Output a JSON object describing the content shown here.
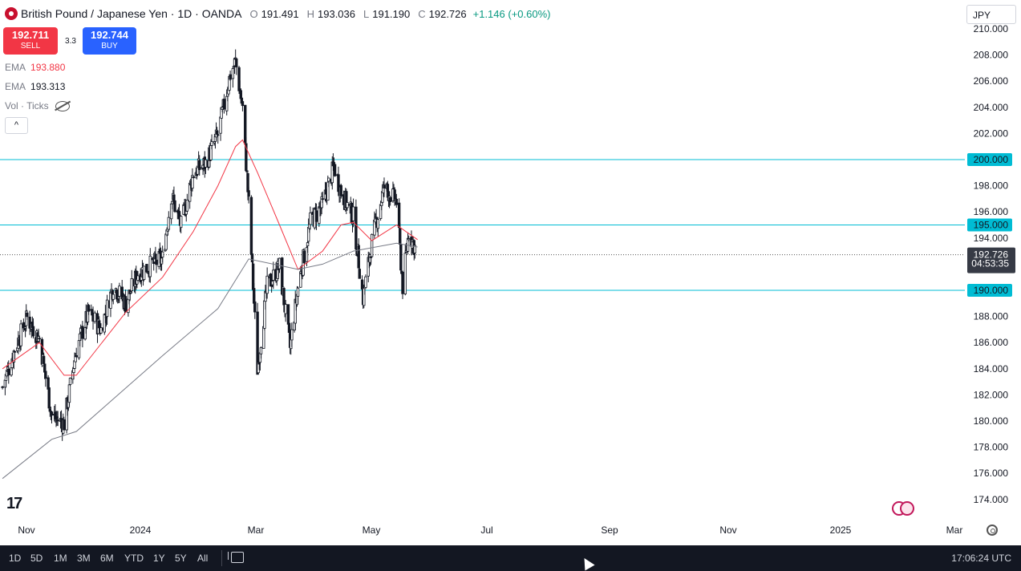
{
  "header": {
    "symbol_title": "British Pound / Japanese Yen · 1D · OANDA",
    "open_label": "O",
    "open_value": "191.491",
    "high_label": "H",
    "high_value": "193.036",
    "low_label": "L",
    "low_value": "191.190",
    "close_label": "C",
    "close_value": "192.726",
    "change": "+1.146 (+0.60%)"
  },
  "trade": {
    "sell_price": "192.711",
    "sell_label": "SELL",
    "spread": "3.3",
    "buy_price": "192.744",
    "buy_label": "BUY"
  },
  "indicators": [
    {
      "name": "EMA",
      "value": "193.880",
      "color": "#f23645"
    },
    {
      "name": "EMA",
      "value": "193.313",
      "color": "#787b86"
    },
    {
      "name": "Vol · Ticks",
      "value": ""
    }
  ],
  "collapse_label": "^",
  "currency": "JPY",
  "axis": {
    "price_labels": [
      "210.000",
      "208.000",
      "206.000",
      "204.000",
      "202.000",
      "200.000",
      "198.000",
      "196.000",
      "195.000",
      "194.000",
      "192.726",
      "190.000",
      "188.000",
      "186.000",
      "184.000",
      "182.000",
      "180.000",
      "178.000",
      "176.000",
      "174.000"
    ],
    "current_price": "192.726",
    "countdown": "04:53:35",
    "time_labels": [
      "Nov",
      "2024",
      "Mar",
      "May",
      "Jul",
      "Sep",
      "Nov",
      "2025",
      "Mar"
    ]
  },
  "bottom_bar": {
    "ranges": [
      "1D",
      "5D",
      "1M",
      "3M",
      "6M",
      "YTD",
      "1Y",
      "5Y",
      "All"
    ],
    "clock": "17:06:24 UTC"
  },
  "colors": {
    "up": "#089981",
    "down": "#131722",
    "ema_fast": "#f23645",
    "ema_slow": "#787b86",
    "level_line": "#00bcd4"
  },
  "chart_data": {
    "type": "candlestick",
    "title": "British Pound / Japanese Yen · 1D · OANDA",
    "ylim": [
      173,
      211
    ],
    "x_ticks": [
      "Nov",
      "2024",
      "Mar",
      "May",
      "Jul",
      "Sep",
      "Nov",
      "2025",
      "Mar"
    ],
    "horizontal_levels": [
      200.0,
      195.0,
      190.0
    ],
    "last_price": 192.726,
    "close_path": [
      {
        "date": "2023-10-20",
        "close": 182.6
      },
      {
        "date": "2023-11-03",
        "close": 185.5
      },
      {
        "date": "2023-11-17",
        "close": 187.9
      },
      {
        "date": "2023-12-01",
        "close": 186.3
      },
      {
        "date": "2023-12-15",
        "close": 180.4
      },
      {
        "date": "2023-12-29",
        "close": 179.8
      },
      {
        "date": "2024-01-12",
        "close": 185.5
      },
      {
        "date": "2024-01-26",
        "close": 188.3
      },
      {
        "date": "2024-02-09",
        "close": 187.0
      },
      {
        "date": "2024-02-23",
        "close": 190.4
      },
      {
        "date": "2024-03-08",
        "close": 189.0
      },
      {
        "date": "2024-03-22",
        "close": 191.3
      },
      {
        "date": "2024-04-05",
        "close": 191.9
      },
      {
        "date": "2024-04-19",
        "close": 192.4
      },
      {
        "date": "2024-04-29",
        "close": 197.3
      },
      {
        "date": "2024-05-10",
        "close": 194.9
      },
      {
        "date": "2024-05-24",
        "close": 199.0
      },
      {
        "date": "2024-06-07",
        "close": 199.7
      },
      {
        "date": "2024-06-21",
        "close": 201.9
      },
      {
        "date": "2024-07-05",
        "close": 206.5
      },
      {
        "date": "2024-07-11",
        "close": 207.5
      },
      {
        "date": "2024-07-19",
        "close": 203.9
      },
      {
        "date": "2024-07-26",
        "close": 196.6
      },
      {
        "date": "2024-08-05",
        "close": 184.0
      },
      {
        "date": "2024-08-16",
        "close": 190.3
      },
      {
        "date": "2024-08-30",
        "close": 191.8
      },
      {
        "date": "2024-09-11",
        "close": 185.6
      },
      {
        "date": "2024-09-20",
        "close": 190.2
      },
      {
        "date": "2024-10-04",
        "close": 195.2
      },
      {
        "date": "2024-10-18",
        "close": 196.5
      },
      {
        "date": "2024-10-31",
        "close": 199.5
      },
      {
        "date": "2024-11-08",
        "close": 197.5
      },
      {
        "date": "2024-11-22",
        "close": 195.6
      },
      {
        "date": "2024-12-03",
        "close": 189.4
      },
      {
        "date": "2024-12-13",
        "close": 193.7
      },
      {
        "date": "2024-12-27",
        "close": 197.9
      },
      {
        "date": "2025-01-10",
        "close": 196.8
      },
      {
        "date": "2025-01-17",
        "close": 190.3
      },
      {
        "date": "2025-01-24",
        "close": 194.5
      },
      {
        "date": "2025-02-03",
        "close": 192.726
      }
    ],
    "series": [
      {
        "name": "EMA",
        "last": 193.88,
        "path": [
          {
            "date": "2023-10-20",
            "value": 184.0
          },
          {
            "date": "2023-12-01",
            "value": 186.0
          },
          {
            "date": "2023-12-29",
            "value": 183.5
          },
          {
            "date": "2024-01-12",
            "value": 183.5
          },
          {
            "date": "2024-03-08",
            "value": 188.3
          },
          {
            "date": "2024-04-19",
            "value": 191.0
          },
          {
            "date": "2024-05-24",
            "value": 194.5
          },
          {
            "date": "2024-06-21",
            "value": 198.0
          },
          {
            "date": "2024-07-11",
            "value": 201.0
          },
          {
            "date": "2024-07-19",
            "value": 201.5
          },
          {
            "date": "2024-08-05",
            "value": 199.0
          },
          {
            "date": "2024-08-30",
            "value": 195.0
          },
          {
            "date": "2024-09-20",
            "value": 191.6
          },
          {
            "date": "2024-10-18",
            "value": 193.0
          },
          {
            "date": "2024-11-08",
            "value": 195.0
          },
          {
            "date": "2024-11-22",
            "value": 195.2
          },
          {
            "date": "2024-12-13",
            "value": 193.8
          },
          {
            "date": "2025-01-10",
            "value": 195.0
          },
          {
            "date": "2025-02-03",
            "value": 193.88
          }
        ]
      },
      {
        "name": "EMA",
        "last": 193.313,
        "path": [
          {
            "date": "2023-10-20",
            "value": 175.6
          },
          {
            "date": "2023-12-15",
            "value": 178.6
          },
          {
            "date": "2024-01-12",
            "value": 179.2
          },
          {
            "date": "2024-04-19",
            "value": 185.0
          },
          {
            "date": "2024-06-21",
            "value": 188.6
          },
          {
            "date": "2024-07-26",
            "value": 192.4
          },
          {
            "date": "2024-08-30",
            "value": 191.9
          },
          {
            "date": "2024-09-20",
            "value": 191.6
          },
          {
            "date": "2024-10-18",
            "value": 192.0
          },
          {
            "date": "2024-11-22",
            "value": 193.0
          },
          {
            "date": "2025-01-10",
            "value": 193.6
          },
          {
            "date": "2025-02-03",
            "value": 193.31
          }
        ]
      }
    ]
  }
}
